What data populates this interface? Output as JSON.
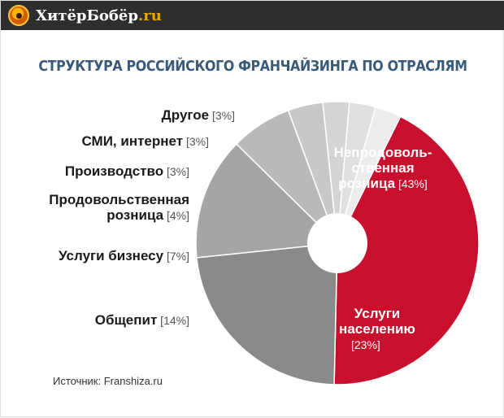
{
  "header": {
    "site_name": "ХитёрБобёр",
    "site_tld": ".ru",
    "logo_icon": "beaver-logo-icon",
    "background_color": "#2e2e2e",
    "tld_color": "#e9a400"
  },
  "source_text": "Источник: Franshiza.ru",
  "chart_data": {
    "type": "pie",
    "variant": "donut",
    "title": "СТРУКТУРА РОССИЙСКОГО ФРАНЧАЙЗИНГА ПО ОТРАСЛЯМ",
    "unit": "%",
    "slices": [
      {
        "name_lines": [
          "Непродоволь-",
          "ственная",
          "розница"
        ],
        "value": 43,
        "value_label": "[43%]",
        "color": "#c8102e"
      },
      {
        "name_lines": [
          "Услуги",
          "населению"
        ],
        "value": 23,
        "value_label": "[23%]",
        "color": "#8a8a8a"
      },
      {
        "name_lines": [
          "Общепит"
        ],
        "value": 14,
        "value_label": "[14%]",
        "color": "#a5a5a5"
      },
      {
        "name_lines": [
          "Услуги бизнесу"
        ],
        "value": 7,
        "value_label": "[7%]",
        "color": "#b9b9b9"
      },
      {
        "name_lines": [
          "Продовольственная",
          "розница"
        ],
        "value": 4,
        "value_label": "[4%]",
        "color": "#c8c8c8"
      },
      {
        "name_lines": [
          "Производство"
        ],
        "value": 3,
        "value_label": "[3%]",
        "color": "#d4d4d4"
      },
      {
        "name_lines": [
          "СМИ, интернет"
        ],
        "value": 3,
        "value_label": "[3%]",
        "color": "#e0e0e0"
      },
      {
        "name_lines": [
          "Другое"
        ],
        "value": 3,
        "value_label": "[3%]",
        "color": "#ececec"
      }
    ]
  }
}
